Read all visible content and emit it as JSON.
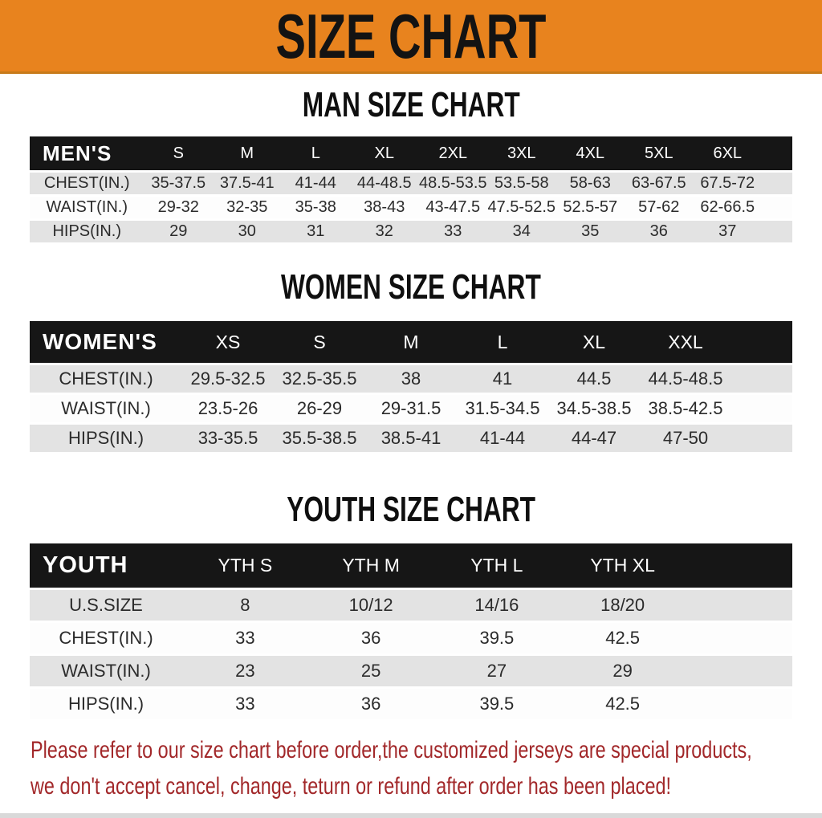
{
  "banner": {
    "title": "SIZE CHART",
    "bg": "#E8831E",
    "text_color": "#131313"
  },
  "sections": [
    {
      "title": "MAN SIZE CHART",
      "header_label": "MEN'S",
      "columns": [
        "S",
        "M",
        "L",
        "XL",
        "2XL",
        "3XL",
        "4XL",
        "5XL",
        "6XL"
      ],
      "rows": [
        {
          "label": "CHEST(IN.)",
          "values": [
            "35-37.5",
            "37.5-41",
            "41-44",
            "44-48.5",
            "48.5-53.5",
            "53.5-58",
            "58-63",
            "63-67.5",
            "67.5-72"
          ]
        },
        {
          "label": "WAIST(IN.)",
          "values": [
            "29-32",
            "32-35",
            "35-38",
            "38-43",
            "43-47.5",
            "47.5-52.5",
            "52.5-57",
            "57-62",
            "62-66.5"
          ]
        },
        {
          "label": "HIPS(IN.)",
          "values": [
            "29",
            "30",
            "31",
            "32",
            "33",
            "34",
            "35",
            "36",
            "37"
          ]
        }
      ]
    },
    {
      "title": "WOMEN SIZE CHART",
      "header_label": "WOMEN'S",
      "columns": [
        "XS",
        "S",
        "M",
        "L",
        "XL",
        "XXL"
      ],
      "rows": [
        {
          "label": "CHEST(IN.)",
          "values": [
            "29.5-32.5",
            "32.5-35.5",
            "38",
            "41",
            "44.5",
            "44.5-48.5"
          ]
        },
        {
          "label": "WAIST(IN.)",
          "values": [
            "23.5-26",
            "26-29",
            "29-31.5",
            "31.5-34.5",
            "34.5-38.5",
            "38.5-42.5"
          ]
        },
        {
          "label": "HIPS(IN.)",
          "values": [
            "33-35.5",
            "35.5-38.5",
            "38.5-41",
            "41-44",
            "44-47",
            "47-50"
          ]
        }
      ]
    },
    {
      "title": "YOUTH SIZE CHART",
      "header_label": "YOUTH",
      "columns": [
        "YTH S",
        "YTH M",
        "YTH L",
        "YTH XL"
      ],
      "rows": [
        {
          "label": "U.S.SIZE",
          "values": [
            "8",
            "10/12",
            "14/16",
            "18/20"
          ]
        },
        {
          "label": "CHEST(IN.)",
          "values": [
            "33",
            "36",
            "39.5",
            "42.5"
          ]
        },
        {
          "label": "WAIST(IN.)",
          "values": [
            "23",
            "25",
            "27",
            "29"
          ]
        },
        {
          "label": "HIPS(IN.)",
          "values": [
            "33",
            "36",
            "39.5",
            "42.5"
          ]
        }
      ]
    }
  ],
  "footnote": {
    "line1": "Please refer to our size chart before order,the customized jerseys are special products,",
    "line2": "we don't accept cancel, change, teturn or refund after order has been placed!",
    "color": "#A2282A"
  },
  "colors": {
    "banner_bg": "#E8831E",
    "table_header_bg": "#161616",
    "row_stripe": "#E3E3E3",
    "note_red": "#A2282A"
  }
}
